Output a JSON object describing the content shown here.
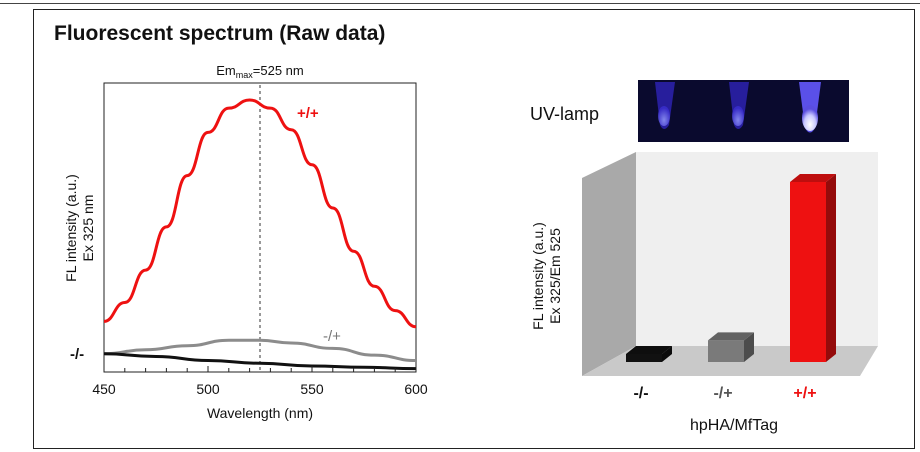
{
  "panel_title": "Fluorescent spectrum (Raw data)",
  "uv_lamp_label": "UV-lamp",
  "colors": {
    "red": "#ee1111",
    "gray": "#8c8c8c",
    "black": "#111111"
  },
  "chart_data": [
    {
      "type": "line",
      "title": "",
      "annotation": {
        "base": "Em",
        "subscript": "max",
        "suffix": "=525 nm",
        "x": 525
      },
      "xlabel": "Wavelength (nm)",
      "ylabel_lines": [
        "FL intensity (a.u.)",
        "Ex 325 nm"
      ],
      "xlim": [
        450,
        600
      ],
      "xticks": [
        450,
        500,
        550,
        600
      ],
      "ylim": [
        0,
        1
      ],
      "series": [
        {
          "name": "+/+",
          "color": "#ee1111",
          "x": [
            450,
            460,
            470,
            480,
            490,
            500,
            510,
            520,
            530,
            540,
            550,
            560,
            570,
            580,
            590,
            600
          ],
          "y": [
            0.18,
            0.25,
            0.37,
            0.53,
            0.72,
            0.88,
            0.97,
            1.0,
            0.97,
            0.89,
            0.76,
            0.6,
            0.44,
            0.31,
            0.22,
            0.16
          ]
        },
        {
          "name": "-/+",
          "color": "#8c8c8c",
          "x": [
            450,
            470,
            490,
            510,
            525,
            540,
            560,
            580,
            600
          ],
          "y": [
            0.06,
            0.075,
            0.09,
            0.11,
            0.11,
            0.1,
            0.08,
            0.055,
            0.035
          ]
        },
        {
          "name": "-/-",
          "color": "#111111",
          "x": [
            450,
            475,
            500,
            525,
            550,
            575,
            600
          ],
          "y": [
            0.06,
            0.05,
            0.035,
            0.025,
            0.015,
            0.01,
            0.005
          ]
        }
      ]
    },
    {
      "type": "bar",
      "title": "",
      "xlabel": "hpHA/MfTag",
      "ylabel_lines": [
        "FL intensity (a.u.)",
        "Ex 325/Em 525"
      ],
      "categories": [
        "-/-",
        "-/+",
        "+/+"
      ],
      "category_colors": [
        "#111111",
        "#7a7a7a",
        "#ee1111"
      ],
      "values": [
        0.04,
        0.12,
        1.0
      ],
      "ylim": [
        0,
        1
      ]
    }
  ]
}
